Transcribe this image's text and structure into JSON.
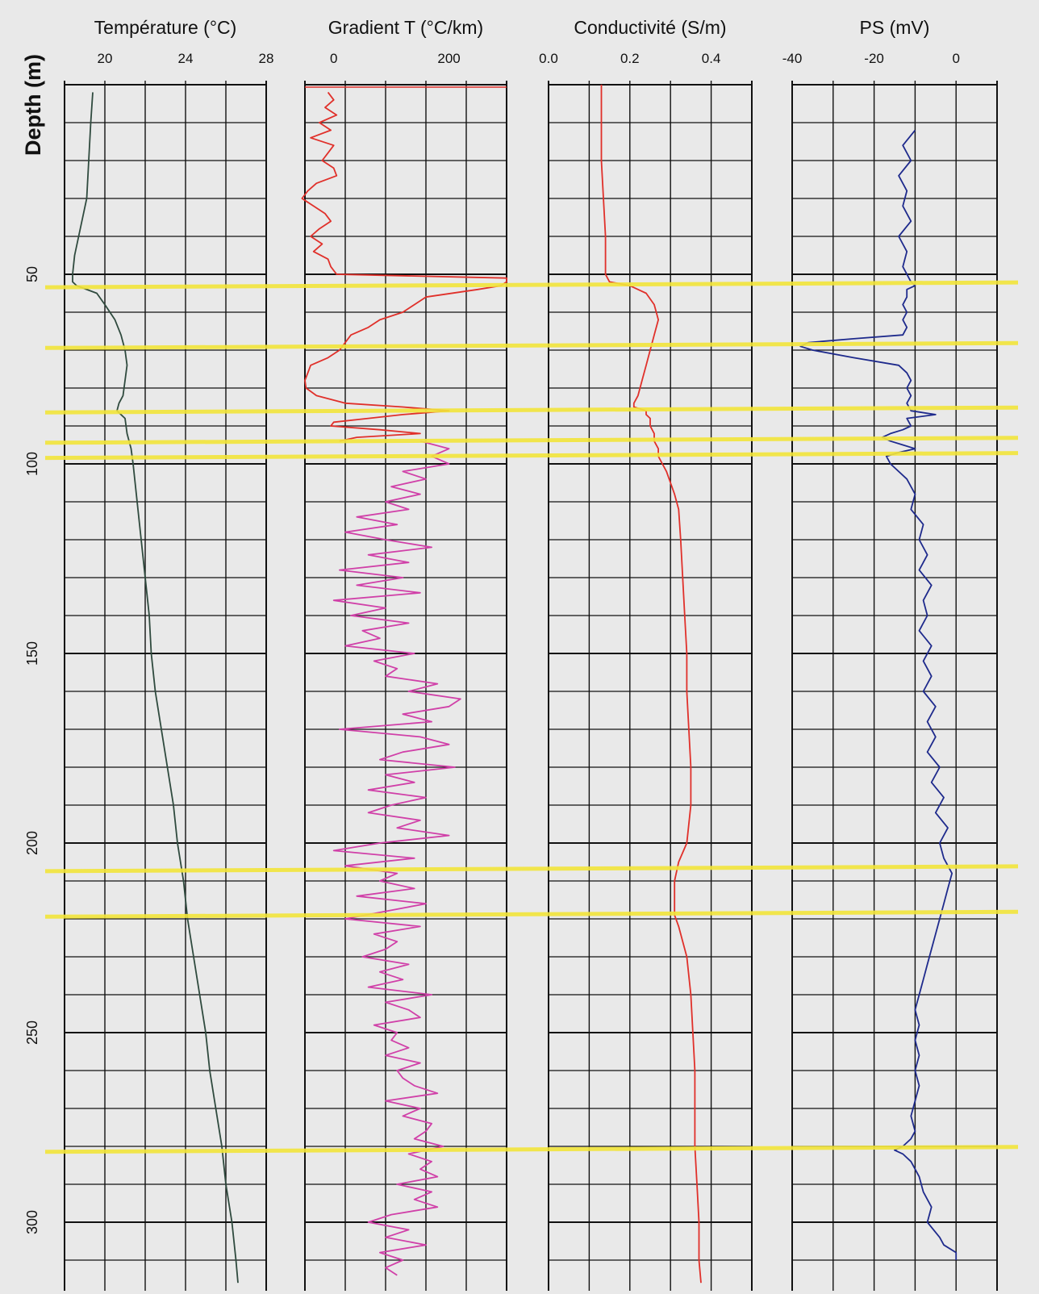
{
  "chart_data": {
    "type": "line",
    "depth_axis": {
      "label": "Depth  (m)",
      "range": [
        0,
        320
      ],
      "ticks": [
        "50",
        "100",
        "150",
        "200",
        "250",
        "300"
      ]
    },
    "horizons_m": [
      53,
      69,
      86,
      94,
      98,
      207,
      219,
      281
    ],
    "colors": {
      "background": "#e9e9e9",
      "grid": "#111111",
      "horizon": "#f2e43a",
      "temperature": "#2f4a3e",
      "gradient_upper": "#e0302a",
      "gradient_lower": "#d040a8",
      "conductivity": "#e0302a",
      "sp": "#1e2a8c"
    },
    "panels": [
      {
        "key": "temperature",
        "title": "Température (°C)",
        "xlim": [
          18,
          28
        ],
        "tick_values": [
          20,
          24,
          28
        ],
        "tick_labels": [
          "20",
          "24",
          "28"
        ],
        "series": {
          "depth": [
            2,
            10,
            20,
            30,
            40,
            45,
            50,
            52,
            53,
            55,
            58,
            62,
            66,
            70,
            74,
            78,
            82,
            84,
            86,
            88,
            92,
            96,
            100,
            110,
            120,
            130,
            140,
            150,
            160,
            170,
            180,
            190,
            200,
            210,
            220,
            230,
            240,
            250,
            260,
            270,
            280,
            290,
            300,
            310,
            316
          ],
          "values": [
            19.4,
            19.3,
            19.2,
            19.1,
            18.7,
            18.5,
            18.4,
            18.4,
            18.6,
            19.6,
            20.0,
            20.5,
            20.8,
            21.0,
            21.1,
            21.0,
            20.9,
            20.7,
            20.6,
            21.0,
            21.1,
            21.3,
            21.4,
            21.6,
            21.8,
            22.0,
            22.2,
            22.3,
            22.5,
            22.8,
            23.1,
            23.4,
            23.6,
            23.9,
            24.1,
            24.4,
            24.7,
            25.0,
            25.2,
            25.5,
            25.8,
            26.0,
            26.3,
            26.5,
            26.6
          ]
        }
      },
      {
        "key": "gradient",
        "title": "Gradient T (°C/km)",
        "xlim": [
          -50,
          300
        ],
        "tick_values": [
          0,
          200
        ],
        "tick_labels": [
          "0",
          "200"
        ],
        "series_upper": {
          "depth": [
            2,
            4,
            6,
            8,
            10,
            12,
            14,
            16,
            18,
            20,
            22,
            24,
            26,
            28,
            30,
            32,
            34,
            36,
            38,
            40,
            42,
            44,
            46,
            48,
            50,
            51,
            52,
            53,
            54,
            56,
            58,
            60,
            62,
            64,
            66,
            68,
            70,
            72,
            74,
            76,
            78,
            80,
            82,
            84,
            85,
            86,
            87,
            88,
            89,
            90,
            91,
            92,
            93,
            94
          ],
          "values": [
            -10,
            0,
            -15,
            5,
            -25,
            -5,
            -40,
            0,
            -10,
            -20,
            0,
            5,
            -30,
            -45,
            -55,
            -35,
            -15,
            -5,
            -25,
            -40,
            -20,
            -35,
            -10,
            -5,
            5,
            300,
            300,
            290,
            250,
            160,
            140,
            120,
            80,
            60,
            30,
            20,
            10,
            -10,
            -40,
            -45,
            -50,
            -48,
            -30,
            20,
            120,
            200,
            120,
            60,
            0,
            -5,
            80,
            150,
            40,
            10
          ]
        },
        "series_lower": {
          "depth": [
            94,
            96,
            98,
            100,
            102,
            104,
            106,
            108,
            110,
            112,
            114,
            116,
            118,
            120,
            122,
            124,
            126,
            128,
            130,
            132,
            134,
            136,
            138,
            140,
            142,
            144,
            146,
            148,
            150,
            152,
            154,
            156,
            158,
            160,
            162,
            164,
            166,
            168,
            170,
            172,
            174,
            176,
            178,
            180,
            182,
            184,
            186,
            188,
            190,
            192,
            194,
            196,
            198,
            200,
            202,
            204,
            206,
            208,
            210,
            212,
            214,
            216,
            218,
            220,
            222,
            224,
            226,
            228,
            230,
            232,
            234,
            236,
            238,
            240,
            242,
            244,
            246,
            248,
            250,
            252,
            254,
            256,
            258,
            260,
            262,
            264,
            266,
            268,
            270,
            272,
            274,
            276,
            278,
            280,
            282,
            284,
            286,
            288,
            290,
            292,
            294,
            296,
            298,
            300,
            302,
            304,
            306,
            308,
            310,
            312,
            314
          ],
          "values": [
            150,
            200,
            170,
            200,
            120,
            160,
            100,
            150,
            90,
            130,
            40,
            110,
            20,
            90,
            170,
            60,
            130,
            10,
            120,
            40,
            150,
            0,
            90,
            30,
            130,
            50,
            80,
            20,
            140,
            70,
            110,
            90,
            180,
            130,
            220,
            200,
            120,
            170,
            10,
            150,
            200,
            120,
            80,
            210,
            90,
            140,
            60,
            160,
            100,
            60,
            150,
            110,
            200,
            80,
            0,
            140,
            20,
            110,
            80,
            140,
            40,
            160,
            90,
            20,
            150,
            70,
            110,
            90,
            50,
            130,
            80,
            120,
            60,
            170,
            90,
            130,
            150,
            70,
            110,
            100,
            130,
            90,
            150,
            110,
            120,
            140,
            180,
            90,
            150,
            120,
            170,
            160,
            140,
            190,
            130,
            170,
            150,
            180,
            110,
            170,
            140,
            180,
            100,
            60,
            130,
            90,
            160,
            80,
            120,
            90,
            110
          ]
        }
      },
      {
        "key": "conductivity",
        "title": "Conductivité (S/m)",
        "xlim": [
          0,
          0.5
        ],
        "tick_values": [
          0,
          0.2,
          0.4
        ],
        "tick_labels": [
          "0.0",
          "0.2",
          "0.4"
        ],
        "series": {
          "depth": [
            0,
            20,
            40,
            50,
            52,
            53,
            54,
            55,
            58,
            62,
            66,
            70,
            74,
            78,
            82,
            84,
            85,
            86,
            87,
            88,
            90,
            92,
            94,
            96,
            98,
            100,
            102,
            105,
            108,
            112,
            120,
            130,
            140,
            150,
            160,
            170,
            180,
            190,
            200,
            205,
            210,
            215,
            219,
            222,
            230,
            240,
            250,
            260,
            270,
            280,
            290,
            300,
            310,
            316
          ],
          "values": [
            0.13,
            0.13,
            0.14,
            0.14,
            0.15,
            0.2,
            0.22,
            0.24,
            0.26,
            0.27,
            0.26,
            0.25,
            0.24,
            0.23,
            0.22,
            0.21,
            0.21,
            0.24,
            0.24,
            0.25,
            0.25,
            0.26,
            0.26,
            0.27,
            0.27,
            0.28,
            0.29,
            0.3,
            0.31,
            0.32,
            0.325,
            0.33,
            0.335,
            0.34,
            0.34,
            0.345,
            0.35,
            0.35,
            0.34,
            0.32,
            0.31,
            0.31,
            0.31,
            0.32,
            0.34,
            0.35,
            0.355,
            0.36,
            0.36,
            0.36,
            0.365,
            0.37,
            0.37,
            0.375
          ]
        }
      },
      {
        "key": "sp",
        "title": "PS (mV)",
        "xlim": [
          -40,
          10
        ],
        "tick_values": [
          -40,
          -20,
          0
        ],
        "tick_labels": [
          "-40",
          "-20",
          "0"
        ],
        "series": {
          "depth": [
            12,
            16,
            20,
            24,
            28,
            32,
            36,
            40,
            44,
            48,
            52,
            53,
            54,
            56,
            58,
            60,
            62,
            64,
            66,
            67,
            68,
            69,
            70,
            72,
            74,
            76,
            78,
            80,
            82,
            84,
            86,
            87,
            88,
            90,
            91,
            92,
            93,
            94,
            95,
            96,
            97,
            98,
            100,
            104,
            108,
            112,
            116,
            120,
            124,
            128,
            132,
            136,
            140,
            144,
            148,
            152,
            156,
            160,
            164,
            168,
            172,
            176,
            180,
            184,
            188,
            192,
            196,
            200,
            204,
            208,
            212,
            216,
            220,
            224,
            228,
            232,
            236,
            240,
            244,
            248,
            252,
            256,
            260,
            264,
            268,
            272,
            276,
            278,
            280,
            281,
            282,
            284,
            288,
            292,
            296,
            300,
            304,
            306,
            308,
            310
          ],
          "values": [
            -10,
            -13,
            -11,
            -14,
            -12,
            -13,
            -11,
            -14,
            -12,
            -13,
            -11,
            -10,
            -12,
            -12,
            -13,
            -12,
            -13,
            -12,
            -13,
            -25,
            -36,
            -38,
            -35,
            -25,
            -14,
            -12,
            -11,
            -12,
            -11,
            -12,
            -11,
            -5,
            -12,
            -11,
            -13,
            -16,
            -18,
            -16,
            -13,
            -10,
            -14,
            -17,
            -16,
            -12,
            -10,
            -11,
            -8,
            -9,
            -7,
            -9,
            -6,
            -8,
            -7,
            -9,
            -6,
            -8,
            -6,
            -8,
            -5,
            -7,
            -5,
            -7,
            -4,
            -6,
            -3,
            -5,
            -2,
            -4,
            -3,
            -1,
            -2,
            -3,
            -4,
            -5,
            -6,
            -7,
            -8,
            -9,
            -10,
            -9,
            -10,
            -9,
            -10,
            -9,
            -10,
            -11,
            -10,
            -11,
            -13,
            -15,
            -13,
            -11,
            -9,
            -8,
            -6,
            -7,
            -4,
            -3,
            0,
            0
          ]
        }
      }
    ]
  }
}
